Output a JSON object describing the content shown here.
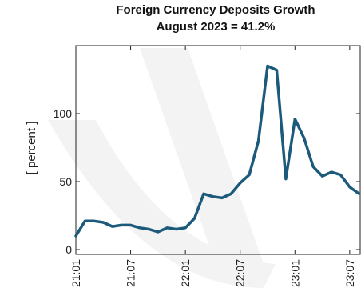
{
  "chart_data": {
    "type": "line",
    "title": "Foreign Currency Deposits Growth",
    "subtitle": "August 2023 = 41.2%",
    "xlabel": "",
    "ylabel": "[ percent ]",
    "ylim": [
      0,
      150
    ],
    "yticks": [
      0,
      50,
      100
    ],
    "xtick_labels": [
      "21:01",
      "21:07",
      "22:01",
      "22:07",
      "23:01",
      "23:07"
    ],
    "grid": false,
    "colors": {
      "line": "#1b5a7a",
      "axis": "#222222"
    },
    "series": [
      {
        "x": [
          "21:01",
          "21:02",
          "21:03",
          "21:04",
          "21:05",
          "21:06",
          "21:07",
          "21:08",
          "21:09",
          "21:10",
          "21:11",
          "21:12",
          "22:01",
          "22:02",
          "22:03",
          "22:04",
          "22:05",
          "22:06",
          "22:07",
          "22:08",
          "22:09",
          "22:10",
          "22:11",
          "22:12",
          "23:01",
          "23:02",
          "23:03",
          "23:04",
          "23:05",
          "23:06",
          "23:07",
          "23:08"
        ],
        "values": [
          10,
          21,
          21,
          20,
          17,
          18,
          18,
          16,
          15,
          13,
          16,
          15,
          16,
          23,
          41,
          39,
          38,
          41,
          49,
          55,
          80,
          135,
          132,
          52,
          96,
          82,
          61,
          54,
          57,
          55,
          46,
          41.2
        ]
      }
    ]
  }
}
